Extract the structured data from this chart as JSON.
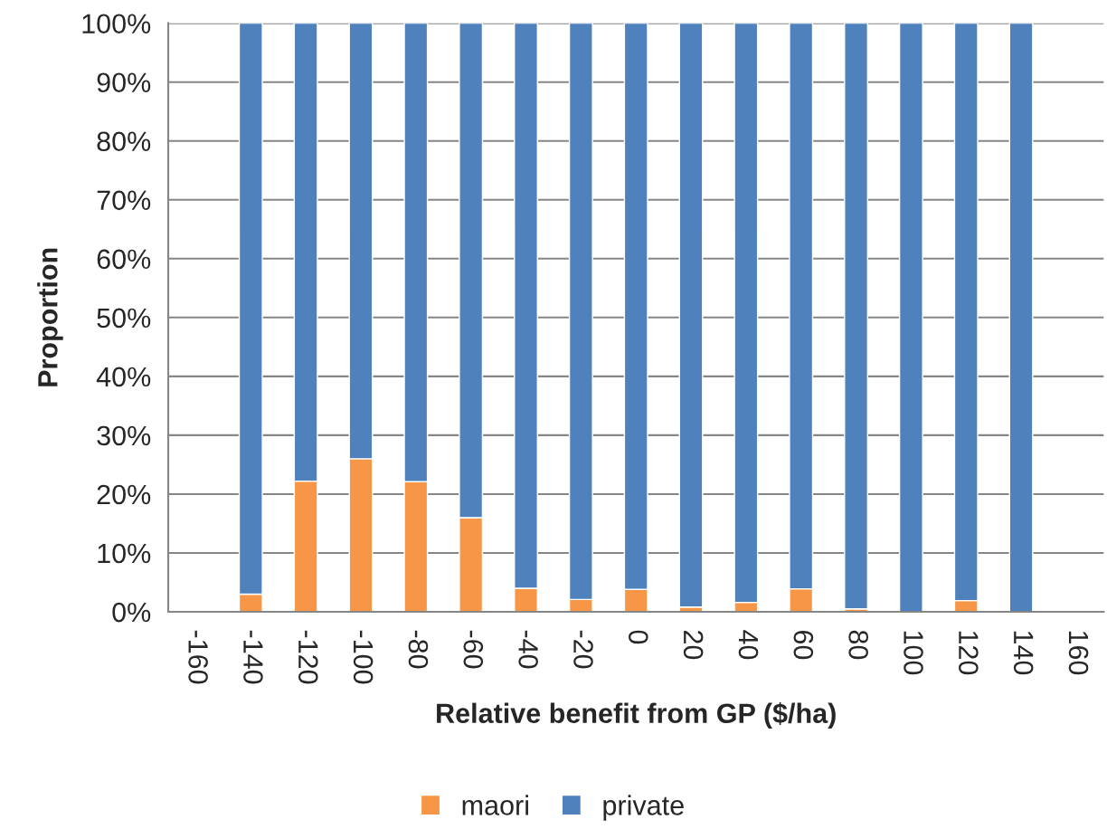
{
  "chart_data": {
    "type": "bar",
    "stacked": true,
    "xlabel": "Relative benefit from GP ($/ha)",
    "ylabel": "Proportion",
    "categories": [
      "-160",
      "-140",
      "-120",
      "-100",
      "-80",
      "-60",
      "-40",
      "-20",
      "0",
      "20",
      "40",
      "60",
      "80",
      "100",
      "120",
      "140",
      "160"
    ],
    "series": [
      {
        "name": "maori",
        "color": "#f79646",
        "values": [
          null,
          3.0,
          22.2,
          26.0,
          22.1,
          16.0,
          4.0,
          2.1,
          3.8,
          0.8,
          1.6,
          3.9,
          0.5,
          0,
          1.9,
          0,
          null
        ]
      },
      {
        "name": "private",
        "color": "#4f81bd",
        "values": [
          null,
          97.0,
          77.8,
          74.0,
          77.9,
          84.0,
          96.0,
          97.9,
          96.2,
          99.2,
          98.4,
          96.1,
          99.5,
          100,
          98.1,
          100,
          null
        ]
      }
    ],
    "ylim": [
      0,
      100
    ],
    "yticks": [
      {
        "value": 0,
        "label": "0%"
      },
      {
        "value": 10,
        "label": "10%"
      },
      {
        "value": 20,
        "label": "20%"
      },
      {
        "value": 30,
        "label": "30%"
      },
      {
        "value": 40,
        "label": "40%"
      },
      {
        "value": 50,
        "label": "50%"
      },
      {
        "value": 60,
        "label": "60%"
      },
      {
        "value": 70,
        "label": "70%"
      },
      {
        "value": 80,
        "label": "80%"
      },
      {
        "value": 90,
        "label": "90%"
      },
      {
        "value": 100,
        "label": "100%"
      }
    ],
    "grid": "y",
    "legend": "bottom"
  }
}
